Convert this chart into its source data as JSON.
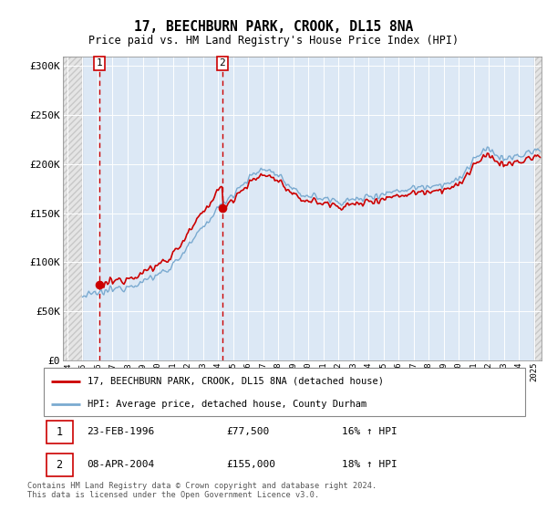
{
  "title": "17, BEECHBURN PARK, CROOK, DL15 8NA",
  "subtitle": "Price paid vs. HM Land Registry's House Price Index (HPI)",
  "legend_line1": "17, BEECHBURN PARK, CROOK, DL15 8NA (detached house)",
  "legend_line2": "HPI: Average price, detached house, County Durham",
  "footer": "Contains HM Land Registry data © Crown copyright and database right 2024.\nThis data is licensed under the Open Government Licence v3.0.",
  "sale1_date": "23-FEB-1996",
  "sale1_price": "£77,500",
  "sale1_hpi": "16% ↑ HPI",
  "sale2_date": "08-APR-2004",
  "sale2_price": "£155,000",
  "sale2_hpi": "18% ↑ HPI",
  "red_color": "#cc0000",
  "blue_color": "#7aaad0",
  "hatch_color": "#cccccc",
  "background_color": "#ffffff",
  "plot_bg_color": "#dce8f5",
  "between_sale_color": "#dce8f5",
  "grid_color": "#ffffff",
  "sale1_year": 1996.12,
  "sale2_year": 2004.29,
  "sale1_price_val": 77500,
  "sale2_price_val": 155000,
  "ylim": [
    0,
    310000
  ],
  "xlim_start": 1993.7,
  "xlim_end": 2025.5,
  "hpi_start_year": 1995.0
}
